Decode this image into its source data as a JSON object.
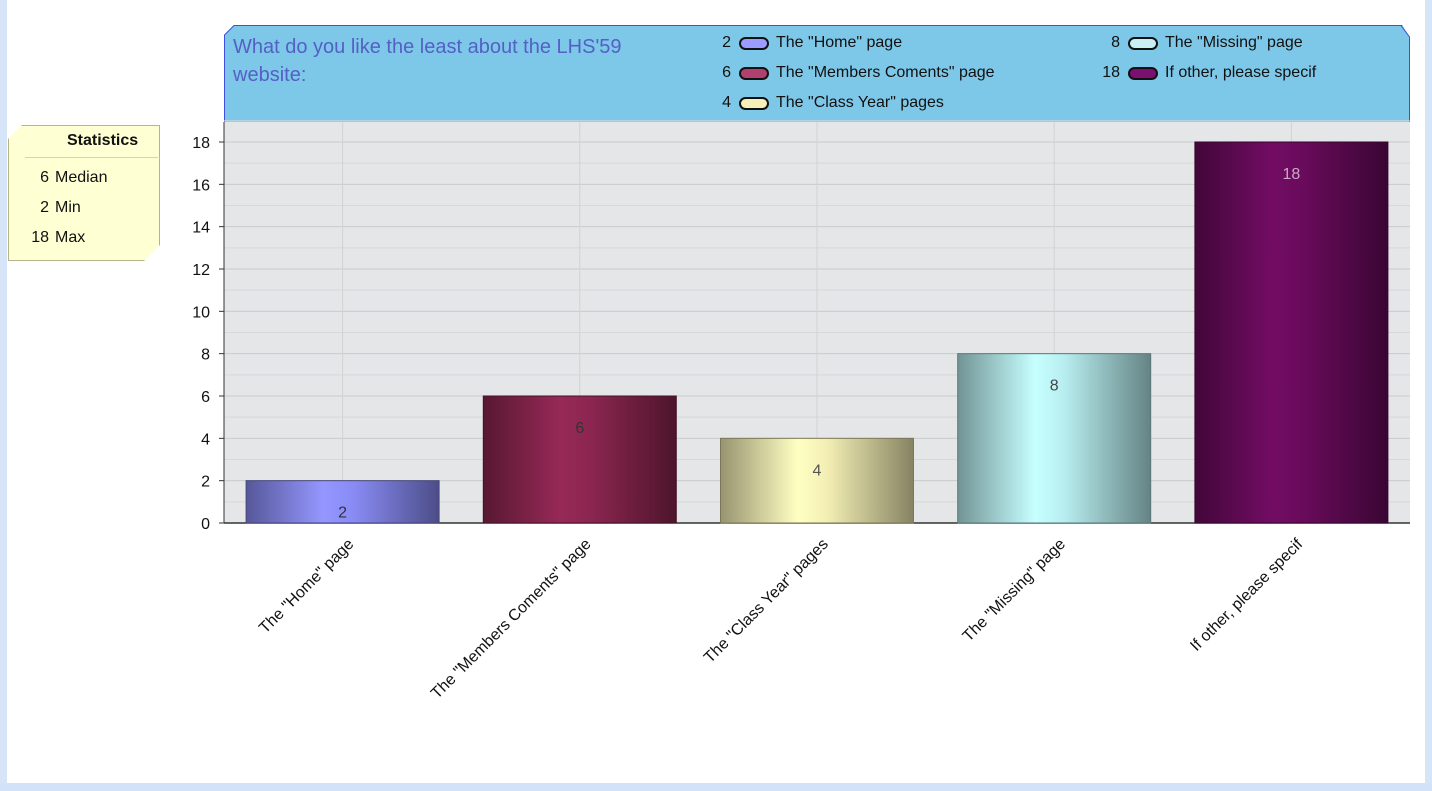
{
  "chart_data": {
    "type": "bar",
    "title": "What do you like the least about the LHS'59 website:",
    "categories": [
      "The \"Home\" page",
      "The \"Members Coments\" page",
      "The \"Class Year\" pages",
      "The \"Missing\" page",
      "If other, please specif"
    ],
    "values": [
      2,
      6,
      4,
      8,
      18
    ],
    "ylim": [
      0,
      18
    ],
    "yticks": [
      0,
      2,
      4,
      6,
      8,
      10,
      12,
      14,
      16,
      18
    ],
    "grid": true,
    "legend_position": "top",
    "colors": [
      "#8a8cf6",
      "#8c2650",
      "#f3efb4",
      "#b8eef0",
      "#6a0b5c"
    ],
    "label_colors": [
      "#333333",
      "#333333",
      "#555555",
      "#444444",
      "#c9a8c8"
    ]
  },
  "legend": {
    "items": [
      {
        "value": "2",
        "label": "The \"Home\" page",
        "color": "#9b9cff"
      },
      {
        "value": "6",
        "label": "The \"Members Coments\" page",
        "color": "#b04070"
      },
      {
        "value": "4",
        "label": "The \"Class Year\" pages",
        "color": "#f7f0b8"
      },
      {
        "value": "8",
        "label": "The \"Missing\" page",
        "color": "#c8f0f4"
      },
      {
        "value": "18",
        "label": "If other, please specif",
        "color": "#7a1070"
      }
    ]
  },
  "statistics": {
    "title": "Statistics",
    "rows": [
      {
        "value": "6",
        "label": "Median"
      },
      {
        "value": "2",
        "label": "Min"
      },
      {
        "value": "18",
        "label": "Max"
      }
    ]
  }
}
